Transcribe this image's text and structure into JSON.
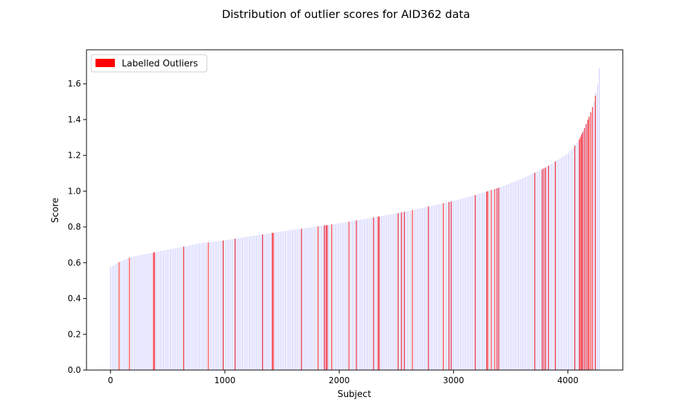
{
  "chart_data": {
    "type": "bar",
    "title": "Distribution of outlier scores for AID362 data",
    "xlabel": "Subject",
    "ylabel": "Score",
    "xlim": [
      -210,
      4480
    ],
    "ylim": [
      0,
      1.79
    ],
    "xticks": [
      0,
      1000,
      2000,
      3000,
      4000
    ],
    "yticks": [
      0.0,
      0.2,
      0.4,
      0.6,
      0.8,
      1.0,
      1.2,
      1.4,
      1.6
    ],
    "legend": {
      "position": "top-left",
      "entries": [
        {
          "label": "Labelled Outliers",
          "color": "#ff0000"
        }
      ]
    },
    "n_subjects": 4279,
    "score_curve": {
      "x": [
        0,
        80,
        150,
        200,
        400,
        800,
        1000,
        1500,
        2000,
        2500,
        3000,
        3200,
        3400,
        3600,
        3800,
        3900,
        4000,
        4050,
        4100,
        4150,
        4200,
        4230,
        4260,
        4279
      ],
      "y": [
        0.575,
        0.605,
        0.625,
        0.635,
        0.66,
        0.71,
        0.725,
        0.775,
        0.82,
        0.875,
        0.945,
        0.98,
        1.02,
        1.07,
        1.13,
        1.17,
        1.21,
        1.245,
        1.29,
        1.36,
        1.44,
        1.5,
        1.6,
        1.71
      ]
    },
    "outlier_subjects": [
      75,
      165,
      375,
      385,
      640,
      855,
      985,
      1090,
      1330,
      1415,
      1425,
      1670,
      1815,
      1870,
      1885,
      1895,
      1935,
      2085,
      2150,
      2300,
      2340,
      2350,
      2515,
      2545,
      2570,
      2640,
      2780,
      2910,
      2960,
      2980,
      3190,
      3290,
      3300,
      3330,
      3360,
      3380,
      3395,
      3710,
      3775,
      3790,
      3805,
      3830,
      3890,
      4060,
      4100,
      4110,
      4120,
      4130,
      4145,
      4160,
      4175,
      4185,
      4200,
      4215,
      4240
    ],
    "colors": {
      "normal": "#0000ff",
      "outlier": "#ff0000"
    }
  }
}
